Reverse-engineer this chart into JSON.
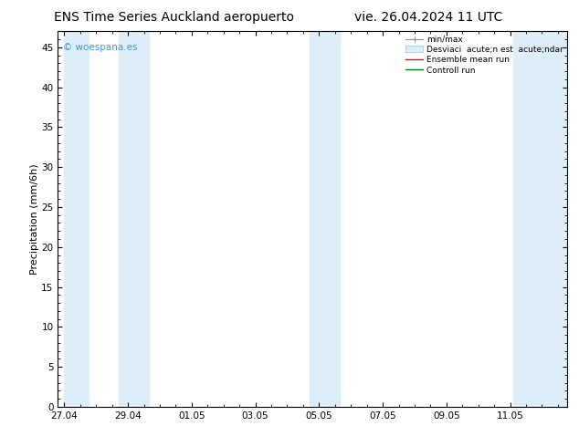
{
  "title_left": "ENS Time Series Auckland aeropuerto",
  "title_right": "vie. 26.04.2024 11 UTC",
  "ylabel": "Precipitation (mm/6h)",
  "watermark": "© woespana.es",
  "ylim": [
    0,
    47
  ],
  "yticks": [
    0,
    5,
    10,
    15,
    20,
    25,
    30,
    35,
    40,
    45
  ],
  "xtick_positions": [
    0,
    2,
    4,
    6,
    8,
    10,
    12,
    14
  ],
  "xtick_labels": [
    "27.04",
    "29.04",
    "01.05",
    "03.05",
    "05.05",
    "07.05",
    "09.05",
    "11.05"
  ],
  "xlim": [
    -0.2,
    15.8
  ],
  "background_color": "#ffffff",
  "shaded_band_color": "#ddeef8",
  "legend_label_minmax": "min/max",
  "legend_label_std": "Desviaci  acute;n est  acute;ndar",
  "legend_label_ensemble": "Ensemble mean run",
  "legend_label_control": "Controll run",
  "ensemble_mean_color": "#ff0000",
  "control_run_color": "#008000",
  "minmax_color": "#909090",
  "title_fontsize": 10,
  "ylabel_fontsize": 8,
  "tick_fontsize": 7.5,
  "watermark_color": "#4499cc",
  "bands": [
    [
      0.0,
      0.75
    ],
    [
      1.7,
      2.65
    ],
    [
      7.7,
      8.65
    ],
    [
      14.1,
      15.8
    ]
  ]
}
